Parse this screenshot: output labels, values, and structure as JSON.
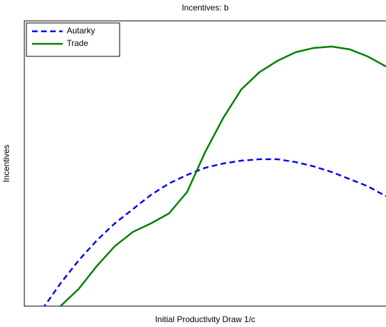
{
  "chart_data": {
    "type": "line",
    "title": "Incentives: b",
    "x_label": "Initial Productivity Draw  1/c",
    "y_label": "Incentives",
    "x": [
      0.05,
      0.1,
      0.15,
      0.2,
      0.25,
      0.3,
      0.35,
      0.4,
      0.45,
      0.5,
      0.55,
      0.6,
      0.65,
      0.7,
      0.75,
      0.8,
      0.85,
      0.9,
      0.95,
      1.0
    ],
    "series": [
      {
        "name": "Autarky",
        "color": "#0000ff",
        "dash": true,
        "values": [
          -0.01,
          0.08,
          0.16,
          0.23,
          0.29,
          0.34,
          0.39,
          0.43,
          0.46,
          0.485,
          0.5,
          0.51,
          0.515,
          0.515,
          0.505,
          0.49,
          0.47,
          0.445,
          0.42,
          0.385
        ]
      },
      {
        "name": "Trade",
        "color": "#007f00",
        "dash": false,
        "values": [
          -0.09,
          0.0,
          0.06,
          0.14,
          0.21,
          0.26,
          0.29,
          0.325,
          0.4,
          0.54,
          0.66,
          0.76,
          0.82,
          0.86,
          0.89,
          0.905,
          0.91,
          0.9,
          0.875,
          0.84
        ]
      }
    ],
    "xlim": [
      0,
      1
    ],
    "ylim": [
      0,
      1
    ],
    "legend": "upper left"
  }
}
